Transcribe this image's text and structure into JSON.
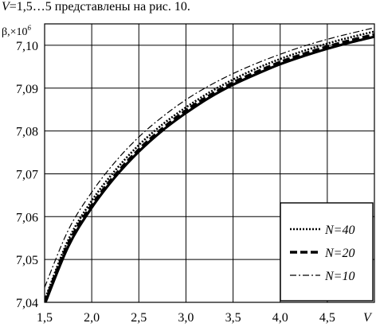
{
  "caption": {
    "var": "V",
    "text": "=1,5…5 представлены на рис. 10."
  },
  "chart_data": {
    "type": "line",
    "ylabel": "β,×10",
    "ylabel_exp": "6",
    "xlabel": "V",
    "xlim": [
      1.5,
      5
    ],
    "ylim": [
      7.04,
      7.105
    ],
    "x_ticks": [
      1.5,
      2.0,
      2.5,
      3.0,
      3.5,
      4.0,
      4.5
    ],
    "x_tick_labels": [
      "1,5",
      "2,0",
      "2,5",
      "3,0",
      "3,5",
      "4,0",
      "4,5"
    ],
    "y_ticks": [
      7.04,
      7.05,
      7.06,
      7.07,
      7.08,
      7.09,
      7.1
    ],
    "y_tick_labels": [
      "7,04",
      "7,05",
      "7,06",
      "7,07",
      "7,08",
      "7,09",
      "7,10"
    ],
    "grid": true,
    "legend_position": "bottom-right",
    "x": [
      1.5,
      1.75,
      2.0,
      2.25,
      2.5,
      2.75,
      3.0,
      3.25,
      3.5,
      3.75,
      4.0,
      4.25,
      4.5,
      4.75,
      5.0
    ],
    "series": [
      {
        "name": "N=40",
        "style": "dotted",
        "values": [
          7.0405,
          7.0545,
          7.0637,
          7.0708,
          7.0767,
          7.0815,
          7.0855,
          7.089,
          7.092,
          7.0946,
          7.0968,
          7.0987,
          7.1004,
          7.1019,
          7.1032
        ]
      },
      {
        "name": "N=20",
        "style": "dashed",
        "values": [
          7.04,
          7.0537,
          7.0627,
          7.0698,
          7.0757,
          7.0806,
          7.0848,
          7.0883,
          7.0913,
          7.0938,
          7.0961,
          7.098,
          7.0997,
          7.1012,
          7.1025
        ]
      },
      {
        "name": "N=10",
        "style": "dash-dot",
        "values": [
          7.0435,
          7.0568,
          7.0657,
          7.0728,
          7.0786,
          7.0833,
          7.0873,
          7.0906,
          7.0934,
          7.0958,
          7.0979,
          7.0998,
          7.1014,
          7.1028,
          7.1041
        ]
      },
      {
        "name": "",
        "style": "solid",
        "values": [
          7.0395,
          7.053,
          7.0621,
          7.0693,
          7.0752,
          7.0801,
          7.0842,
          7.0878,
          7.0908,
          7.0933,
          7.0956,
          7.0975,
          7.0992,
          7.1007,
          7.102
        ]
      }
    ]
  }
}
